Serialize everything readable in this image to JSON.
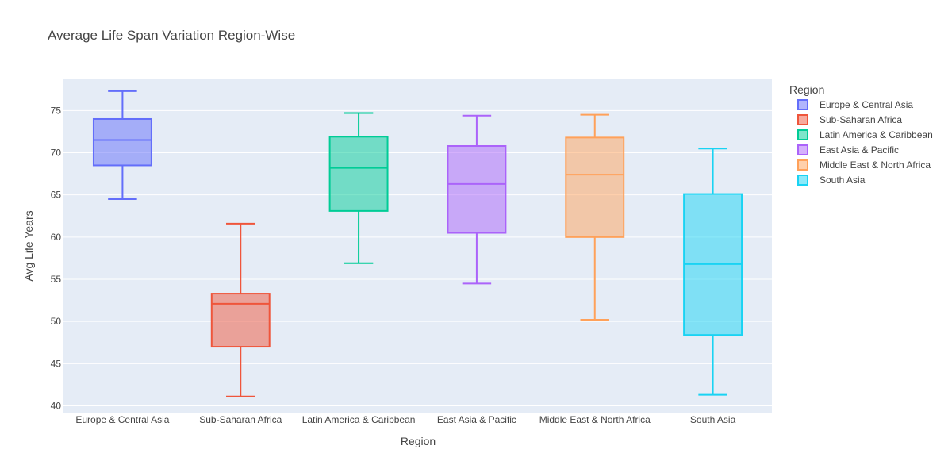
{
  "chart_data": {
    "type": "box",
    "title": "Average Life Span Variation Region-Wise",
    "xlabel": "Region",
    "ylabel": "Avg Life Years",
    "ylim": [
      39.2,
      78.7
    ],
    "yticks": [
      40,
      45,
      50,
      55,
      60,
      65,
      70,
      75
    ],
    "grid": true,
    "legend": {
      "title": "Region",
      "position": "right"
    },
    "series": [
      {
        "name": "Europe & Central Asia",
        "color": "#636efa",
        "min": 64.5,
        "q1": 68.5,
        "median": 71.5,
        "q3": 74.0,
        "max": 77.3
      },
      {
        "name": "Sub-Saharan Africa",
        "color": "#ef553b",
        "min": 41.1,
        "q1": 47.0,
        "median": 52.1,
        "q3": 53.3,
        "max": 61.6
      },
      {
        "name": "Latin America & Caribbean",
        "color": "#00cc96",
        "min": 56.9,
        "q1": 63.1,
        "median": 68.2,
        "q3": 71.9,
        "max": 74.7
      },
      {
        "name": "East Asia & Pacific",
        "color": "#ab63fa",
        "min": 54.5,
        "q1": 60.5,
        "median": 66.3,
        "q3": 70.8,
        "max": 74.4
      },
      {
        "name": "Middle East & North Africa",
        "color": "#ffa15a",
        "min": 50.2,
        "q1": 60.0,
        "median": 67.4,
        "q3": 71.8,
        "max": 74.5
      },
      {
        "name": "South Asia",
        "color": "#19d3f3",
        "min": 41.3,
        "q1": 48.4,
        "median": 56.8,
        "q3": 65.1,
        "max": 70.5
      }
    ]
  }
}
